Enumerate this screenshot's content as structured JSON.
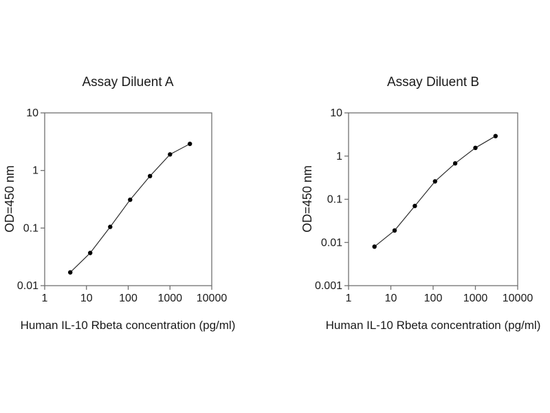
{
  "style": {
    "background": "#ffffff",
    "frame_color": "#6f6f6f",
    "tick_color": "#6f6f6f",
    "text_color": "#1a1a1a",
    "line_color": "#2b2b2b",
    "marker_color": "#000000"
  },
  "chart_data": [
    {
      "type": "line",
      "title": "Assay Diluent A",
      "xlabel": "Human IL-10 Rbeta concentration (pg/ml)",
      "ylabel": "OD=450 nm",
      "x_scale": "log",
      "y_scale": "log",
      "xlim": [
        1,
        10000
      ],
      "ylim": [
        0.01,
        10
      ],
      "x_ticks": [
        1,
        10,
        100,
        1000,
        10000
      ],
      "y_ticks": [
        0.01,
        0.1,
        1,
        10
      ],
      "grid": false,
      "legend": null,
      "marker": "filled-circle",
      "x": [
        4.1,
        12.3,
        37,
        111,
        333,
        1000,
        3000
      ],
      "y": [
        0.017,
        0.037,
        0.105,
        0.31,
        0.8,
        1.9,
        2.9
      ]
    },
    {
      "type": "line",
      "title": "Assay Diluent B",
      "xlabel": "Human IL-10 Rbeta concentration (pg/ml)",
      "ylabel": "OD=450 nm",
      "x_scale": "log",
      "y_scale": "log",
      "xlim": [
        1,
        10000
      ],
      "ylim": [
        0.001,
        10
      ],
      "x_ticks": [
        1,
        10,
        100,
        1000,
        10000
      ],
      "y_ticks": [
        0.001,
        0.01,
        0.1,
        1,
        10
      ],
      "grid": false,
      "legend": null,
      "marker": "filled-circle",
      "x": [
        4.1,
        12.3,
        37,
        111,
        333,
        1000,
        3000
      ],
      "y": [
        0.008,
        0.019,
        0.07,
        0.26,
        0.68,
        1.55,
        2.9
      ]
    }
  ]
}
